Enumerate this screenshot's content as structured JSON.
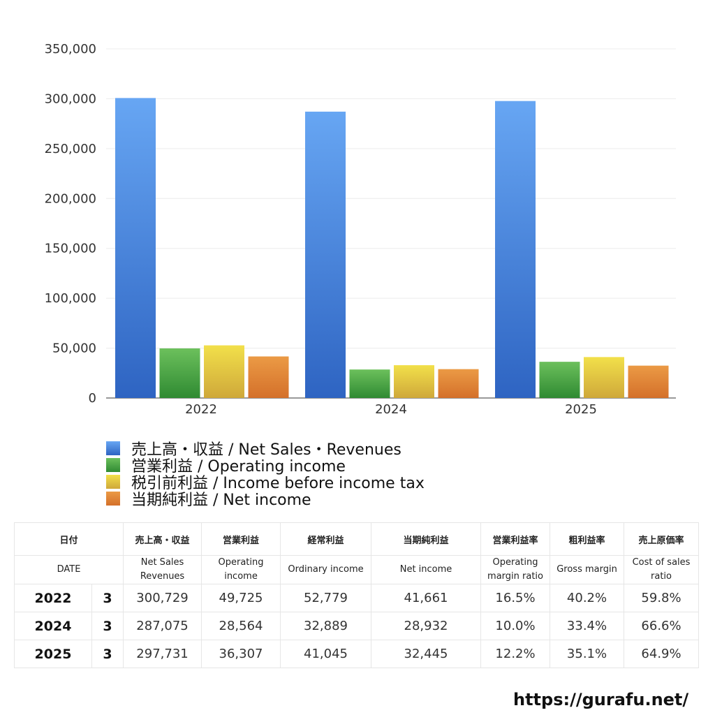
{
  "chart_data": {
    "type": "bar",
    "categories": [
      "2022",
      "2024",
      "2025"
    ],
    "series": [
      {
        "name": "売上高・収益 / Net Sales・Revenues",
        "values": [
          300729,
          287075,
          297731
        ]
      },
      {
        "name": "営業利益 / Operating income",
        "values": [
          49725,
          28564,
          36307
        ]
      },
      {
        "name": "税引前利益 / Income before income tax",
        "values": [
          52779,
          32889,
          41045
        ]
      },
      {
        "name": "当期純利益 / Net income",
        "values": [
          41661,
          28932,
          32445
        ]
      }
    ],
    "y_ticks": [
      "0",
      "50,000",
      "100,000",
      "150,000",
      "200,000",
      "250,000",
      "300,000",
      "350,000"
    ],
    "ylim": [
      0,
      350000
    ],
    "grid": true,
    "legend_position": "bottom-left",
    "colors": [
      "#4a8fe6",
      "#4ea845",
      "#e6c93c",
      "#e0852e"
    ]
  },
  "table": {
    "header_jp": [
      "日付",
      "売上高・収益",
      "営業利益",
      "経常利益",
      "当期純利益",
      "営業利益率",
      "粗利益率",
      "売上原価率"
    ],
    "header_en": [
      "DATE",
      "Net Sales\nRevenues",
      "Operating\nincome",
      "Ordinary income",
      "Net income",
      "Operating\nmargin ratio",
      "Gross margin",
      "Cost of sales\nratio"
    ],
    "rows": [
      [
        "2022",
        "3",
        "300,729",
        "49,725",
        "52,779",
        "41,661",
        "16.5%",
        "40.2%",
        "59.8%"
      ],
      [
        "2024",
        "3",
        "287,075",
        "28,564",
        "32,889",
        "28,932",
        "10.0%",
        "33.4%",
        "66.6%"
      ],
      [
        "2025",
        "3",
        "297,731",
        "36,307",
        "41,045",
        "32,445",
        "12.2%",
        "35.1%",
        "64.9%"
      ]
    ]
  },
  "footer": {
    "url": "https://gurafu.net/"
  }
}
